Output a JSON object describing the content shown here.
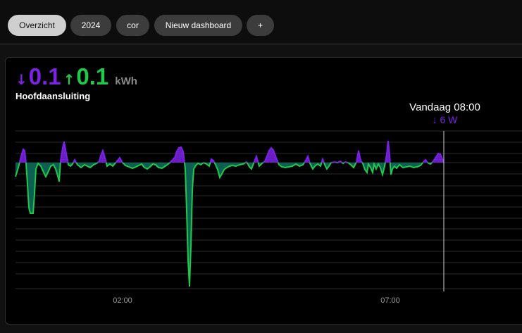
{
  "tabs": [
    {
      "label": "Overzicht",
      "active": true
    },
    {
      "label": "2024",
      "active": false
    },
    {
      "label": "cor",
      "active": false
    },
    {
      "label": "Nieuw dashboard",
      "active": false
    },
    {
      "label": "+",
      "active": false
    }
  ],
  "summary": {
    "import_arrow": "↓",
    "import_value": "0.1",
    "export_arrow": "↑",
    "export_value": "0.1",
    "unit": "kWh",
    "connection_label": "Hoofdaansluiting"
  },
  "tooltip": {
    "time": "Vandaag 08:00",
    "value": "↓ 6 W"
  },
  "colors": {
    "import": "#7b22e6",
    "export": "#21c94a",
    "export_fill": "#0c6a5a",
    "grid": "#2a2a2a",
    "cursor": "#cfcfcf"
  },
  "chart_data": {
    "type": "area",
    "x_tick_labels": [
      "02:00",
      "07:00"
    ],
    "cursor_label": "Vandaag 08:00",
    "cursor_value_w": 6,
    "grid": true,
    "legend": "none"
  }
}
